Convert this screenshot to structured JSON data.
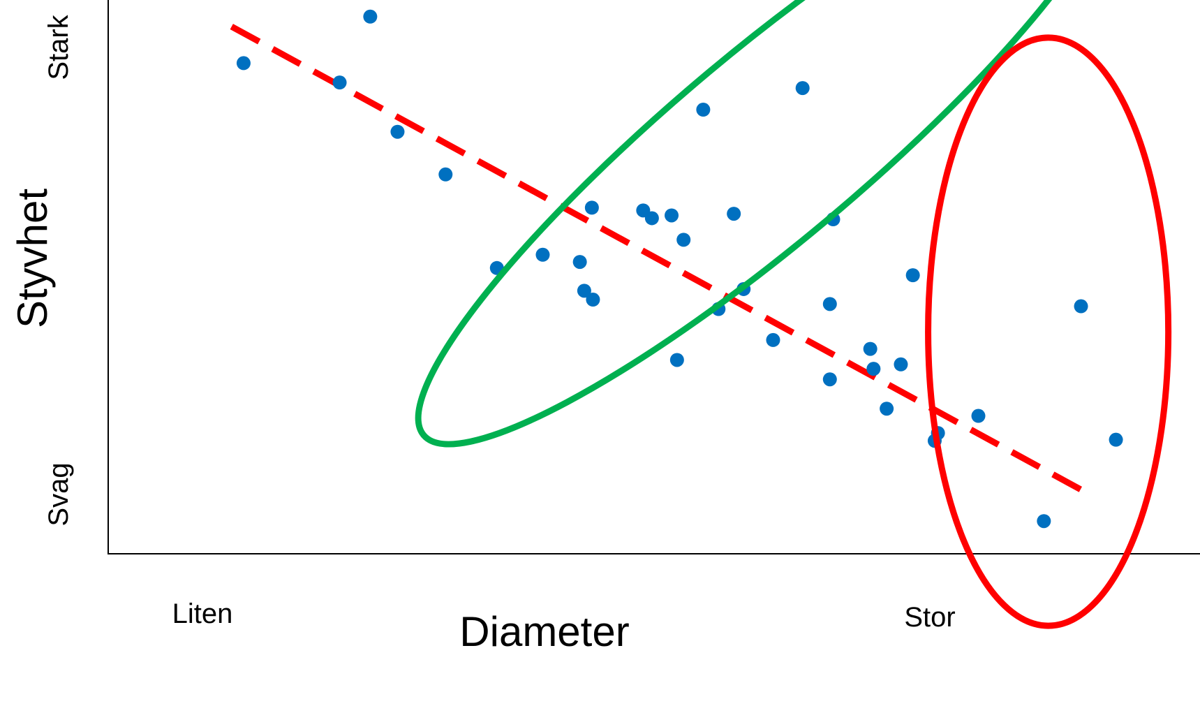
{
  "chart_data": {
    "type": "scatter",
    "title": "",
    "xlabel": "Diameter",
    "ylabel": "Styvhet",
    "x_tick_labels": [
      "Liten",
      "Stor"
    ],
    "y_tick_labels": [
      "Stark",
      "Svag"
    ],
    "xlim": [
      0,
      100
    ],
    "ylim": [
      0,
      100
    ],
    "grid": false,
    "colors": {
      "points": "#0070C0",
      "trend": "#FF0000",
      "green_ellipse": "#00B050",
      "red_ellipse": "#FF0000",
      "axes": "#000000"
    },
    "series": [
      {
        "points": [
          {
            "x": 12.4,
            "y": 88.6
          },
          {
            "x": 21.2,
            "y": 85.1
          },
          {
            "x": 24.0,
            "y": 97.0
          },
          {
            "x": 26.5,
            "y": 76.2
          },
          {
            "x": 30.9,
            "y": 68.5
          },
          {
            "x": 35.6,
            "y": 51.6
          },
          {
            "x": 39.8,
            "y": 54.0
          },
          {
            "x": 43.2,
            "y": 52.7
          },
          {
            "x": 43.6,
            "y": 47.5
          },
          {
            "x": 44.4,
            "y": 45.9
          },
          {
            "x": 44.3,
            "y": 62.5
          },
          {
            "x": 49.0,
            "y": 62.0
          },
          {
            "x": 49.8,
            "y": 60.6
          },
          {
            "x": 51.6,
            "y": 61.1
          },
          {
            "x": 52.1,
            "y": 35.0
          },
          {
            "x": 52.7,
            "y": 56.7
          },
          {
            "x": 54.5,
            "y": 80.2
          },
          {
            "x": 55.9,
            "y": 44.2
          },
          {
            "x": 57.3,
            "y": 61.4
          },
          {
            "x": 58.2,
            "y": 47.8
          },
          {
            "x": 60.9,
            "y": 38.6
          },
          {
            "x": 63.6,
            "y": 84.1
          },
          {
            "x": 66.1,
            "y": 45.1
          },
          {
            "x": 66.1,
            "y": 31.5
          },
          {
            "x": 66.4,
            "y": 60.4
          },
          {
            "x": 69.8,
            "y": 37.0
          },
          {
            "x": 70.1,
            "y": 33.4
          },
          {
            "x": 71.3,
            "y": 26.2
          },
          {
            "x": 72.6,
            "y": 34.2
          },
          {
            "x": 73.7,
            "y": 50.3
          },
          {
            "x": 75.7,
            "y": 20.4
          },
          {
            "x": 76.0,
            "y": 21.8
          },
          {
            "x": 79.7,
            "y": 24.9
          },
          {
            "x": 85.7,
            "y": 5.9
          },
          {
            "x": 89.1,
            "y": 44.7
          },
          {
            "x": 92.3,
            "y": 20.6
          }
        ]
      }
    ],
    "trend_line": {
      "style": "dashed",
      "from": {
        "x": 11.3,
        "y": 95.2
      },
      "to": {
        "x": 90.1,
        "y": 10.5
      }
    },
    "annotations": [
      {
        "shape": "ellipse",
        "color": "green",
        "cx": 60.3,
        "cy": 73.4,
        "rx": 41.0,
        "ry": 17.1,
        "rotate_deg": -40
      },
      {
        "shape": "ellipse",
        "color": "red",
        "cx": 86.1,
        "cy": 40.1,
        "rx": 11.0,
        "ry": 53.1,
        "rotate_deg": 0
      }
    ]
  }
}
